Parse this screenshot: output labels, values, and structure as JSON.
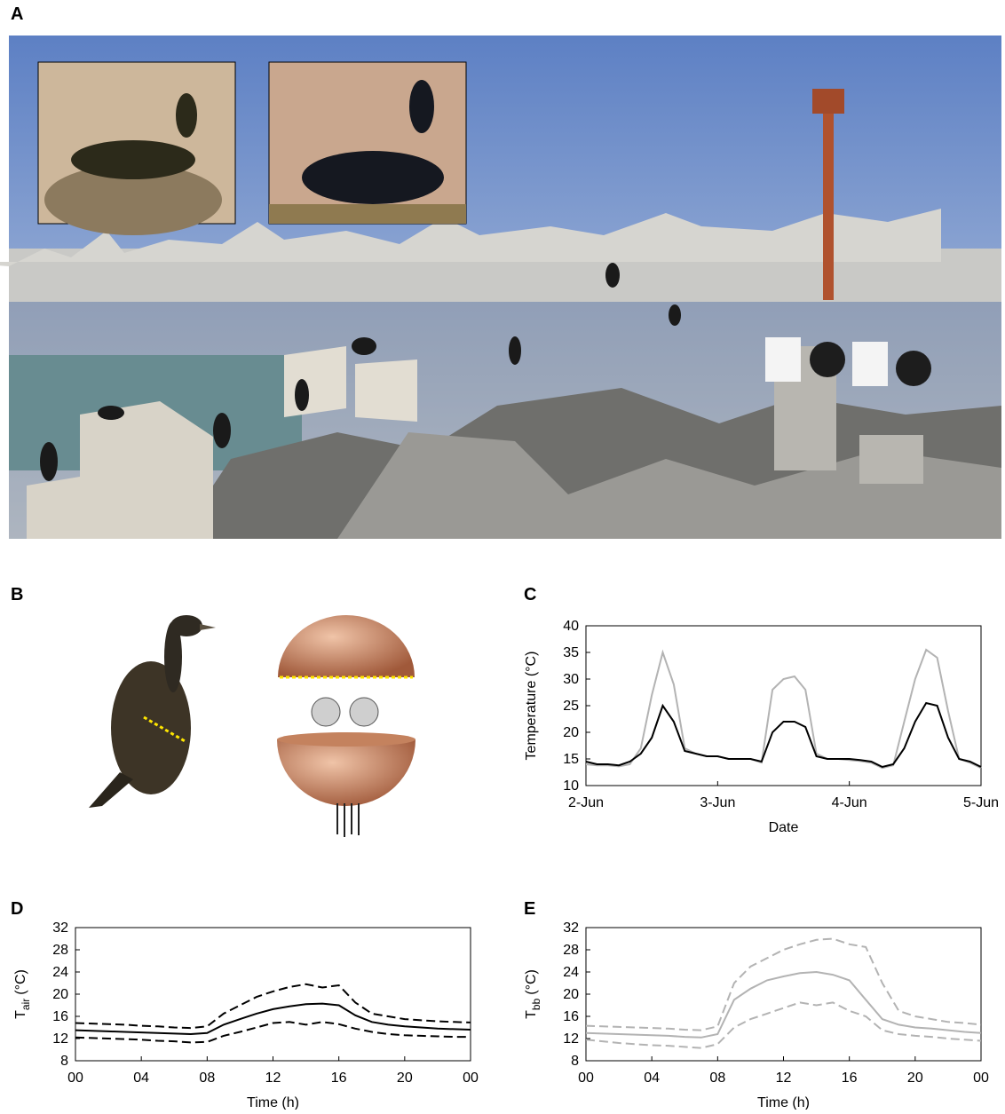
{
  "panels": [
    "A",
    "B",
    "C",
    "D",
    "E"
  ],
  "chart_data": [
    {
      "type": "line",
      "x": [
        0,
        2,
        4,
        6,
        8,
        10,
        12,
        14,
        16,
        18,
        20,
        22,
        24,
        26,
        28,
        30,
        32,
        34,
        36,
        38,
        40,
        42,
        44,
        46,
        48,
        50,
        52,
        54,
        56,
        58,
        60,
        62,
        64,
        66,
        68,
        70,
        72
      ],
      "series": [
        {
          "color": "#b3b3b3",
          "values": [
            14,
            13.8,
            13.8,
            13.6,
            14,
            17,
            27,
            35,
            29,
            17,
            16,
            15.5,
            15.5,
            15,
            15,
            15,
            14.3,
            28,
            30,
            30.5,
            28,
            16,
            15,
            15,
            14.8,
            14.6,
            14.3,
            13.3,
            13.8,
            22,
            30,
            35.5,
            34,
            24,
            15,
            14.3,
            13.3
          ]
        },
        {
          "color": "#000000",
          "values": [
            14.5,
            14,
            14,
            13.8,
            14.5,
            16,
            19,
            25,
            22,
            16.5,
            16,
            15.5,
            15.5,
            15,
            15,
            15,
            14.5,
            20,
            22,
            22,
            21,
            15.5,
            15,
            15,
            15,
            14.8,
            14.5,
            13.5,
            14,
            17,
            22,
            25.5,
            25,
            19,
            15,
            14.5,
            13.5
          ]
        }
      ],
      "xlim": [
        0,
        72
      ],
      "xticks": [
        {
          "value": 0,
          "label": "2-Jun"
        },
        {
          "value": 24,
          "label": "3-Jun"
        },
        {
          "value": 48,
          "label": "4-Jun"
        },
        {
          "value": 72,
          "label": "5-Jun"
        }
      ],
      "ylim": [
        10,
        40
      ],
      "yticks": [
        10,
        15,
        20,
        25,
        30,
        35,
        40
      ],
      "xlabel": "Date",
      "ylabel": "Temperature (°C)"
    },
    {
      "type": "line",
      "x": [
        0,
        1,
        2,
        3,
        4,
        5,
        6,
        7,
        8,
        9,
        10,
        11,
        12,
        13,
        14,
        15,
        16,
        17,
        18,
        19,
        20,
        21,
        22,
        23,
        24
      ],
      "series": [
        {
          "color": "#000000",
          "dashed": false,
          "values": [
            13.5,
            13.4,
            13.3,
            13.2,
            13.1,
            13,
            12.9,
            12.8,
            13,
            14.5,
            15.5,
            16.5,
            17.3,
            17.8,
            18.2,
            18.3,
            18,
            16.2,
            15,
            14.5,
            14.2,
            14,
            13.8,
            13.7,
            13.6
          ]
        },
        {
          "color": "#000000",
          "dashed": true,
          "values": [
            14.8,
            14.7,
            14.6,
            14.5,
            14.3,
            14.2,
            14,
            13.9,
            14.2,
            16.5,
            18,
            19.5,
            20.5,
            21.3,
            21.8,
            21.2,
            21.6,
            18.5,
            16.5,
            16,
            15.5,
            15.3,
            15.1,
            15,
            14.9
          ]
        },
        {
          "color": "#000000",
          "dashed": true,
          "values": [
            12.2,
            12.1,
            12,
            11.9,
            11.8,
            11.6,
            11.5,
            11.3,
            11.4,
            12.5,
            13.2,
            14,
            14.8,
            15,
            14.5,
            15,
            14.6,
            13.8,
            13.2,
            12.8,
            12.6,
            12.5,
            12.4,
            12.3,
            12.3
          ]
        }
      ],
      "xlim": [
        0,
        24
      ],
      "xticks": [
        {
          "value": 0,
          "label": "00"
        },
        {
          "value": 4,
          "label": "04"
        },
        {
          "value": 8,
          "label": "08"
        },
        12,
        16,
        20,
        {
          "value": 24,
          "label": "00"
        }
      ],
      "ylim": [
        8,
        32
      ],
      "yticks": [
        8,
        12,
        16,
        20,
        24,
        28,
        32
      ],
      "xlabel": "Time (h)",
      "ylabel": {
        "main": "T",
        "sub": "air",
        "rest": "(°C)"
      }
    },
    {
      "type": "line",
      "x": [
        0,
        1,
        2,
        3,
        4,
        5,
        6,
        7,
        8,
        9,
        10,
        11,
        12,
        13,
        14,
        15,
        16,
        17,
        18,
        19,
        20,
        21,
        22,
        23,
        24
      ],
      "series": [
        {
          "color": "#b3b3b3",
          "dashed": false,
          "values": [
            13,
            12.9,
            12.8,
            12.7,
            12.6,
            12.5,
            12.3,
            12.2,
            12.8,
            19,
            21,
            22.5,
            23.2,
            23.8,
            24,
            23.5,
            22.5,
            19,
            15.5,
            14.5,
            14,
            13.8,
            13.5,
            13.2,
            13
          ]
        },
        {
          "color": "#b3b3b3",
          "dashed": true,
          "values": [
            14.3,
            14.2,
            14.1,
            14,
            13.9,
            13.8,
            13.6,
            13.5,
            14.2,
            22,
            25,
            26.5,
            28,
            29,
            29.8,
            30,
            29,
            28.5,
            22,
            17,
            16,
            15.5,
            15,
            14.8,
            14.5
          ]
        },
        {
          "color": "#b3b3b3",
          "dashed": true,
          "values": [
            11.8,
            11.5,
            11.2,
            11,
            10.8,
            10.7,
            10.5,
            10.3,
            11,
            14,
            15.5,
            16.5,
            17.5,
            18.5,
            18,
            18.5,
            17,
            16,
            13.5,
            12.8,
            12.5,
            12.3,
            12,
            11.8,
            11.6
          ]
        }
      ],
      "xlim": [
        0,
        24
      ],
      "xticks": [
        {
          "value": 0,
          "label": "00"
        },
        {
          "value": 4,
          "label": "04"
        },
        {
          "value": 8,
          "label": "08"
        },
        12,
        16,
        20,
        {
          "value": 24,
          "label": "00"
        }
      ],
      "ylim": [
        8,
        32
      ],
      "yticks": [
        8,
        12,
        16,
        20,
        24,
        28,
        32
      ],
      "xlabel": "Time (h)",
      "ylabel": {
        "main": "T",
        "sub": "bb",
        "rest": "(°C)"
      }
    }
  ]
}
